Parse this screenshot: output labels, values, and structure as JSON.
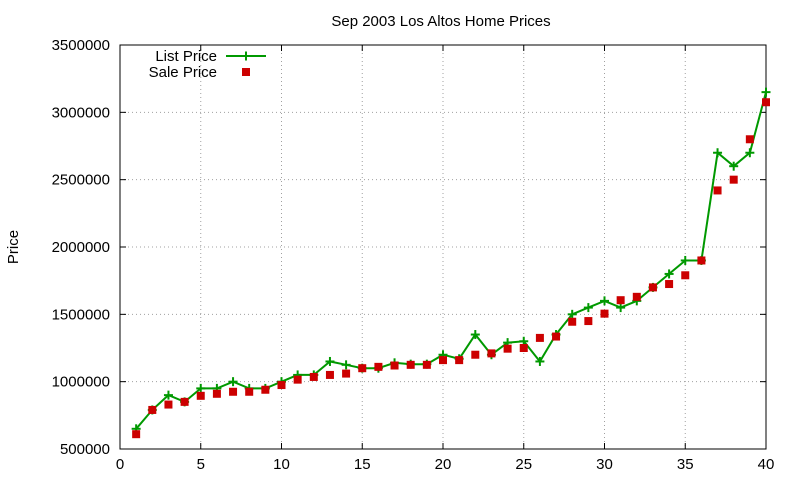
{
  "chart_data": {
    "type": "line",
    "title": "Sep 2003 Los Altos Home Prices",
    "xlabel": "",
    "ylabel": "Price",
    "xlim": [
      0,
      40
    ],
    "ylim": [
      500000,
      3500000
    ],
    "xticks": [
      0,
      5,
      10,
      15,
      20,
      25,
      30,
      35,
      40
    ],
    "yticks": [
      500000,
      1000000,
      1500000,
      2000000,
      2500000,
      3000000,
      3500000
    ],
    "grid": true,
    "legend_position": "top-left",
    "x": [
      1,
      2,
      3,
      4,
      5,
      6,
      7,
      8,
      9,
      10,
      11,
      12,
      13,
      14,
      15,
      16,
      17,
      18,
      19,
      20,
      21,
      22,
      23,
      24,
      25,
      26,
      27,
      28,
      29,
      30,
      31,
      32,
      33,
      34,
      35,
      36,
      37,
      38,
      39,
      40
    ],
    "series": [
      {
        "name": "List Price",
        "style": "line-with-plus-markers",
        "color": "#009900",
        "values": [
          650000,
          790000,
          900000,
          850000,
          950000,
          950000,
          1000000,
          950000,
          950000,
          1000000,
          1050000,
          1050000,
          1150000,
          1125000,
          1100000,
          1100000,
          1140000,
          1130000,
          1130000,
          1200000,
          1170000,
          1350000,
          1200000,
          1290000,
          1300000,
          1150000,
          1350000,
          1500000,
          1550000,
          1600000,
          1550000,
          1600000,
          1700000,
          1800000,
          1900000,
          1900000,
          2700000,
          2600000,
          2700000,
          3150000
        ]
      },
      {
        "name": "Sale Price",
        "style": "square-markers",
        "color": "#cc0000",
        "values": [
          610000,
          790000,
          830000,
          850000,
          895000,
          910000,
          925000,
          925000,
          940000,
          975000,
          1015000,
          1035000,
          1050000,
          1060000,
          1100000,
          1110000,
          1120000,
          1125000,
          1125000,
          1160000,
          1160000,
          1200000,
          1210000,
          1245000,
          1250000,
          1325000,
          1335000,
          1445000,
          1450000,
          1505000,
          1605000,
          1630000,
          1700000,
          1725000,
          1790000,
          1900000,
          2420000,
          2500000,
          2800000,
          3075000
        ]
      }
    ]
  }
}
